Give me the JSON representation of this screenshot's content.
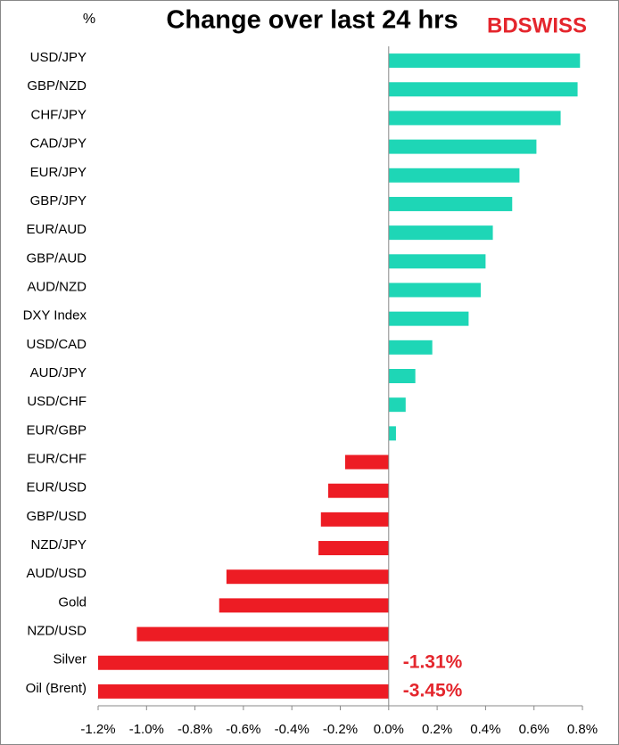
{
  "chart_data": {
    "type": "barh",
    "title": "Change over last 24 hrs",
    "unit_label": "%",
    "logo": "BDSWISS",
    "categories": [
      "USD/JPY",
      "GBP/NZD",
      "CHF/JPY",
      "CAD/JPY",
      "EUR/JPY",
      "GBP/JPY",
      "EUR/AUD",
      "GBP/AUD",
      "AUD/NZD",
      "DXY Index",
      "USD/CAD",
      "AUD/JPY",
      "USD/CHF",
      "EUR/GBP",
      "EUR/CHF",
      "EUR/USD",
      "GBP/USD",
      "NZD/JPY",
      "AUD/USD",
      "Gold",
      "NZD/USD",
      "Silver",
      "Oil (Brent)"
    ],
    "values": [
      0.79,
      0.78,
      0.71,
      0.61,
      0.54,
      0.51,
      0.43,
      0.4,
      0.38,
      0.33,
      0.18,
      0.11,
      0.07,
      0.03,
      -0.18,
      -0.25,
      -0.28,
      -0.29,
      -0.67,
      -0.7,
      -1.04,
      -1.31,
      -3.45
    ],
    "value_labels": [
      null,
      null,
      null,
      null,
      null,
      null,
      null,
      null,
      null,
      null,
      null,
      null,
      null,
      null,
      null,
      null,
      null,
      null,
      null,
      null,
      null,
      "-1.31%",
      "-3.45%"
    ],
    "positive_color": "#1ed6b6",
    "negative_color": "#ed1c24",
    "xlim": [
      -1.2,
      0.8
    ],
    "xticks": [
      {
        "value": -1.2,
        "label": "-1.2%"
      },
      {
        "value": -1.0,
        "label": "-1.0%"
      },
      {
        "value": -0.8,
        "label": "-0.8%"
      },
      {
        "value": -0.6,
        "label": "-0.6%"
      },
      {
        "value": -0.4,
        "label": "-0.4%"
      },
      {
        "value": -0.2,
        "label": "-0.2%"
      },
      {
        "value": 0.0,
        "label": "0.0%"
      },
      {
        "value": 0.2,
        "label": "0.2%"
      },
      {
        "value": 0.4,
        "label": "0.4%"
      },
      {
        "value": 0.6,
        "label": "0.6%"
      },
      {
        "value": 0.8,
        "label": "0.8%"
      }
    ],
    "grid": false
  }
}
